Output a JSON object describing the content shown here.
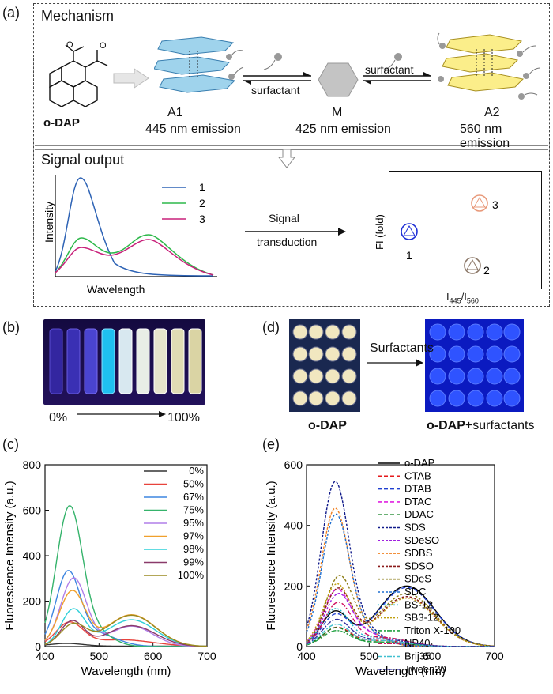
{
  "panel_labels": {
    "a": "(a)",
    "b": "(b)",
    "c": "(c)",
    "d": "(d)",
    "e": "(e)"
  },
  "mechanism": {
    "title": "Mechanism",
    "molecule": "o-DAP",
    "a1_name": "A1",
    "a1_emission": "445 nm emission",
    "m_name": "M",
    "m_emission": "425 nm emission",
    "a2_name": "A2",
    "a2_emission": "560 nm emission",
    "arrow1": "surfactant",
    "arrow2": "surfactant"
  },
  "signal": {
    "title": "Signal output",
    "ylabel": "Intensity",
    "xlabel": "Wavelength",
    "legend": [
      "1",
      "2",
      "3"
    ],
    "arrow_top": "Signal",
    "arrow_bottom": "transduction",
    "plot_ylabel": "FI (fold)",
    "plot_xlabel_I": "I",
    "plot_xlabel_sub1": "445",
    "plot_xlabel_slash": "/I",
    "plot_xlabel_sub2": "560",
    "points": [
      {
        "label": "1",
        "color": "#1f2fd6"
      },
      {
        "label": "3",
        "color": "#e8997a"
      },
      {
        "label": "2",
        "color": "#8a7666"
      }
    ]
  },
  "panel_b": {
    "start": "0%",
    "end": "100%"
  },
  "panel_d": {
    "arrow": "Surfactants",
    "left": "o-DAP",
    "right_bold": "o-DAP",
    "right_rest": "+surfactants"
  },
  "chart_data": [
    {
      "type": "line",
      "title": "",
      "xlabel": "Wavelength (nm)",
      "ylabel": "Fluorescence Intensity (a.u.)",
      "xlim": [
        400,
        700
      ],
      "ylim": [
        0,
        800
      ],
      "xticks": [
        400,
        500,
        600,
        700
      ],
      "yticks": [
        0,
        200,
        400,
        600,
        800
      ],
      "series": [
        {
          "name": "0%",
          "color": "#333333",
          "peaks": [
            [
              440,
              12,
              30
            ]
          ],
          "base": 2
        },
        {
          "name": "50%",
          "color": "#e8433c",
          "peaks": [
            [
              445,
              100,
              25
            ],
            [
              540,
              30,
              60
            ]
          ],
          "base": 0
        },
        {
          "name": "67%",
          "color": "#3d85e0",
          "peaks": [
            [
              442,
              305,
              22
            ],
            [
              490,
              60,
              40
            ]
          ],
          "base": 0
        },
        {
          "name": "75%",
          "color": "#35b36b",
          "peaks": [
            [
              445,
              605,
              24
            ],
            [
              495,
              60,
              30
            ]
          ],
          "base": 0
        },
        {
          "name": "95%",
          "color": "#b07ee8",
          "peaks": [
            [
              453,
              300,
              24
            ],
            [
              560,
              90,
              40
            ]
          ],
          "base": 0
        },
        {
          "name": "97%",
          "color": "#f0a02c",
          "peaks": [
            [
              450,
              240,
              24
            ],
            [
              560,
              140,
              45
            ]
          ],
          "base": 0
        },
        {
          "name": "98%",
          "color": "#2fd0d8",
          "peaks": [
            [
              452,
              160,
              22
            ],
            [
              560,
              118,
              45
            ]
          ],
          "base": 0
        },
        {
          "name": "99%",
          "color": "#8a3a6a",
          "peaks": [
            [
              450,
              110,
              22
            ],
            [
              560,
              92,
              45
            ]
          ],
          "base": 0
        },
        {
          "name": "100%",
          "color": "#9a8a20",
          "peaks": [
            [
              452,
              95,
              24
            ],
            [
              560,
              138,
              45
            ]
          ],
          "base": 0
        }
      ]
    },
    {
      "type": "line",
      "title": "",
      "xlabel": "Wavelength (nm)",
      "ylabel": "Fluorescence Intensity (a.u.)",
      "xlim": [
        400,
        700
      ],
      "ylim": [
        0,
        600
      ],
      "xticks": [
        400,
        500,
        600,
        700
      ],
      "yticks": [
        0,
        200,
        400,
        600
      ],
      "series": [
        {
          "name": "o-DAP",
          "color": "#000000",
          "dash": "none",
          "peaks": [
            [
              445,
              110,
              22
            ],
            [
              560,
              200,
              45
            ]
          ]
        },
        {
          "name": "CTAB",
          "color": "#e41a1c",
          "dash": "5,3",
          "peaks": [
            [
              448,
              60,
              22
            ],
            [
              520,
              20,
              40
            ]
          ]
        },
        {
          "name": "DTAB",
          "color": "#1f3fd0",
          "dash": "5,3",
          "peaks": [
            [
              446,
              100,
              22
            ],
            [
              560,
              195,
              45
            ]
          ]
        },
        {
          "name": "DTAC",
          "color": "#e020e0",
          "dash": "5,3",
          "peaks": [
            [
              448,
              180,
              22
            ],
            [
              500,
              40,
              30
            ]
          ]
        },
        {
          "name": "DDAC",
          "color": "#108020",
          "dash": "5,3",
          "peaks": [
            [
              447,
              60,
              22
            ],
            [
              520,
              15,
              40
            ]
          ]
        },
        {
          "name": "SDS",
          "color": "#101a8a",
          "dash": "3,2",
          "peaks": [
            [
              445,
              525,
              22
            ],
            [
              490,
              60,
              30
            ]
          ]
        },
        {
          "name": "SDeSO",
          "color": "#a020e0",
          "dash": "3,2",
          "peaks": [
            [
              450,
              165,
              22
            ],
            [
              500,
              40,
              30
            ]
          ]
        },
        {
          "name": "SDBS",
          "color": "#f08020",
          "dash": "3,2",
          "peaks": [
            [
              445,
              440,
              22
            ],
            [
              490,
              50,
              30
            ]
          ]
        },
        {
          "name": "SDSO",
          "color": "#8a1a1a",
          "dash": "3,2",
          "peaks": [
            [
              450,
              185,
              22
            ],
            [
              560,
              165,
              45
            ]
          ]
        },
        {
          "name": "SDeS",
          "color": "#8a7a10",
          "dash": "3,2",
          "peaks": [
            [
              452,
              225,
              22
            ],
            [
              560,
              175,
              45
            ]
          ]
        },
        {
          "name": "SDC",
          "color": "#1f6fd0",
          "dash": "3,2",
          "peaks": [
            [
              446,
              420,
              22
            ],
            [
              490,
              50,
              30
            ]
          ]
        },
        {
          "name": "BS-12",
          "color": "#20b8c8",
          "dash": "2,2",
          "peaks": [
            [
              446,
              120,
              22
            ],
            [
              520,
              30,
              40
            ]
          ]
        },
        {
          "name": "SB3-12",
          "color": "#c0a010",
          "dash": "2,2",
          "peaks": [
            [
              448,
              200,
              22
            ],
            [
              560,
              160,
              45
            ]
          ]
        },
        {
          "name": "Triton X-100",
          "color": "#20a040",
          "dash": "6,2,2,2",
          "peaks": [
            [
              447,
              50,
              22
            ],
            [
              520,
              15,
              40
            ]
          ]
        },
        {
          "name": "NP40",
          "color": "#d01060",
          "dash": "6,2,2,2",
          "peaks": [
            [
              450,
              140,
              22
            ],
            [
              520,
              30,
              40
            ]
          ]
        },
        {
          "name": "Brij35",
          "color": "#40c0d0",
          "dash": "6,2,2,2",
          "peaks": [
            [
              447,
              70,
              22
            ],
            [
              520,
              20,
              40
            ]
          ]
        },
        {
          "name": "Tween20",
          "color": "#3030a0",
          "dash": "6,2,2,2",
          "peaks": [
            [
              447,
              85,
              22
            ],
            [
              520,
              25,
              40
            ]
          ]
        }
      ]
    }
  ]
}
